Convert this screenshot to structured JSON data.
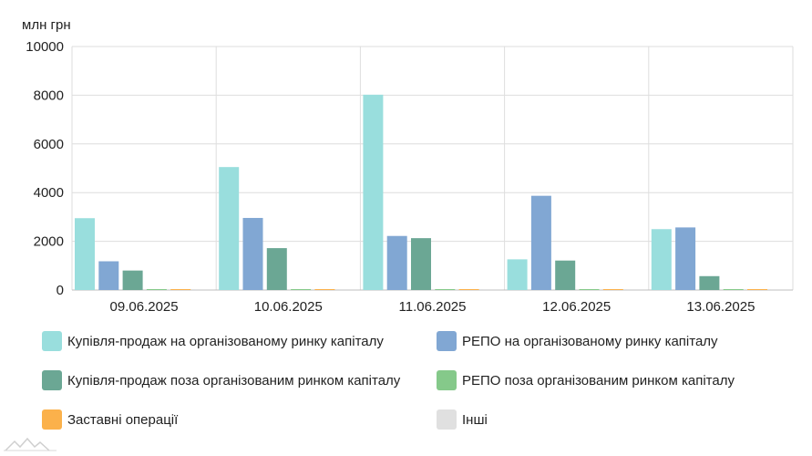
{
  "chart_data": {
    "type": "bar",
    "unit_label": "млн грн",
    "categories": [
      "09.06.2025",
      "10.06.2025",
      "11.06.2025",
      "12.06.2025",
      "13.06.2025"
    ],
    "ylim": [
      0,
      10000
    ],
    "yticks": [
      0,
      2000,
      4000,
      6000,
      8000,
      10000
    ],
    "grid": true,
    "legend_position": "bottom",
    "series": [
      {
        "name": "Купівля-продаж на організованому ринку капіталу",
        "color": "#99dedd",
        "values": [
          2950,
          5050,
          8020,
          1260,
          2500
        ]
      },
      {
        "name": "РЕПО на організованому ринку капіталу",
        "color": "#81a7d3",
        "values": [
          1180,
          2960,
          2220,
          3870,
          2570
        ]
      },
      {
        "name": "Купівля-продаж поза організованим ринком капіталу",
        "color": "#6ba794",
        "values": [
          800,
          1720,
          2130,
          1210,
          570
        ]
      },
      {
        "name": "РЕПО поза організованим ринком капіталу",
        "color": "#85c98a",
        "values": [
          0,
          0,
          0,
          0,
          0
        ]
      },
      {
        "name": "Заставні операції",
        "color": "#fbb14b",
        "values": [
          0,
          0,
          0,
          0,
          0
        ]
      },
      {
        "name": "Інші",
        "color": "#e0e0e0",
        "values": [
          0,
          0,
          0,
          0,
          0
        ]
      }
    ]
  }
}
